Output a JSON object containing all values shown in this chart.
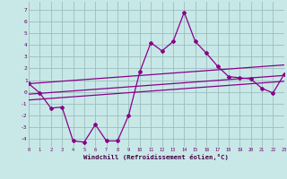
{
  "xlabel": "Windchill (Refroidissement éolien,°C)",
  "background_color": "#c8e8e8",
  "grid_color": "#9bbdbd",
  "line_color": "#880088",
  "xlim": [
    0,
    23
  ],
  "ylim": [
    -4.7,
    7.7
  ],
  "yticks": [
    -4,
    -3,
    -2,
    -1,
    0,
    1,
    2,
    3,
    4,
    5,
    6,
    7
  ],
  "xticks": [
    0,
    1,
    2,
    3,
    4,
    5,
    6,
    7,
    8,
    9,
    10,
    11,
    12,
    13,
    14,
    15,
    16,
    17,
    18,
    19,
    20,
    21,
    22,
    23
  ],
  "main_y": [
    0.7,
    -0.1,
    -1.4,
    -1.3,
    -4.2,
    -4.3,
    -2.8,
    -4.2,
    -4.2,
    -2.0,
    1.7,
    4.2,
    3.5,
    4.3,
    6.8,
    4.3,
    3.3,
    2.2,
    1.3,
    1.2,
    1.1,
    0.3,
    -0.1,
    1.5
  ],
  "trend_lines": [
    {
      "x0": 0,
      "y0": 0.7,
      "x1": 23,
      "y1": 2.3
    },
    {
      "x0": 0,
      "y0": -0.2,
      "x1": 23,
      "y1": 1.4
    },
    {
      "x0": 0,
      "y0": -0.7,
      "x1": 23,
      "y1": 0.9
    }
  ]
}
